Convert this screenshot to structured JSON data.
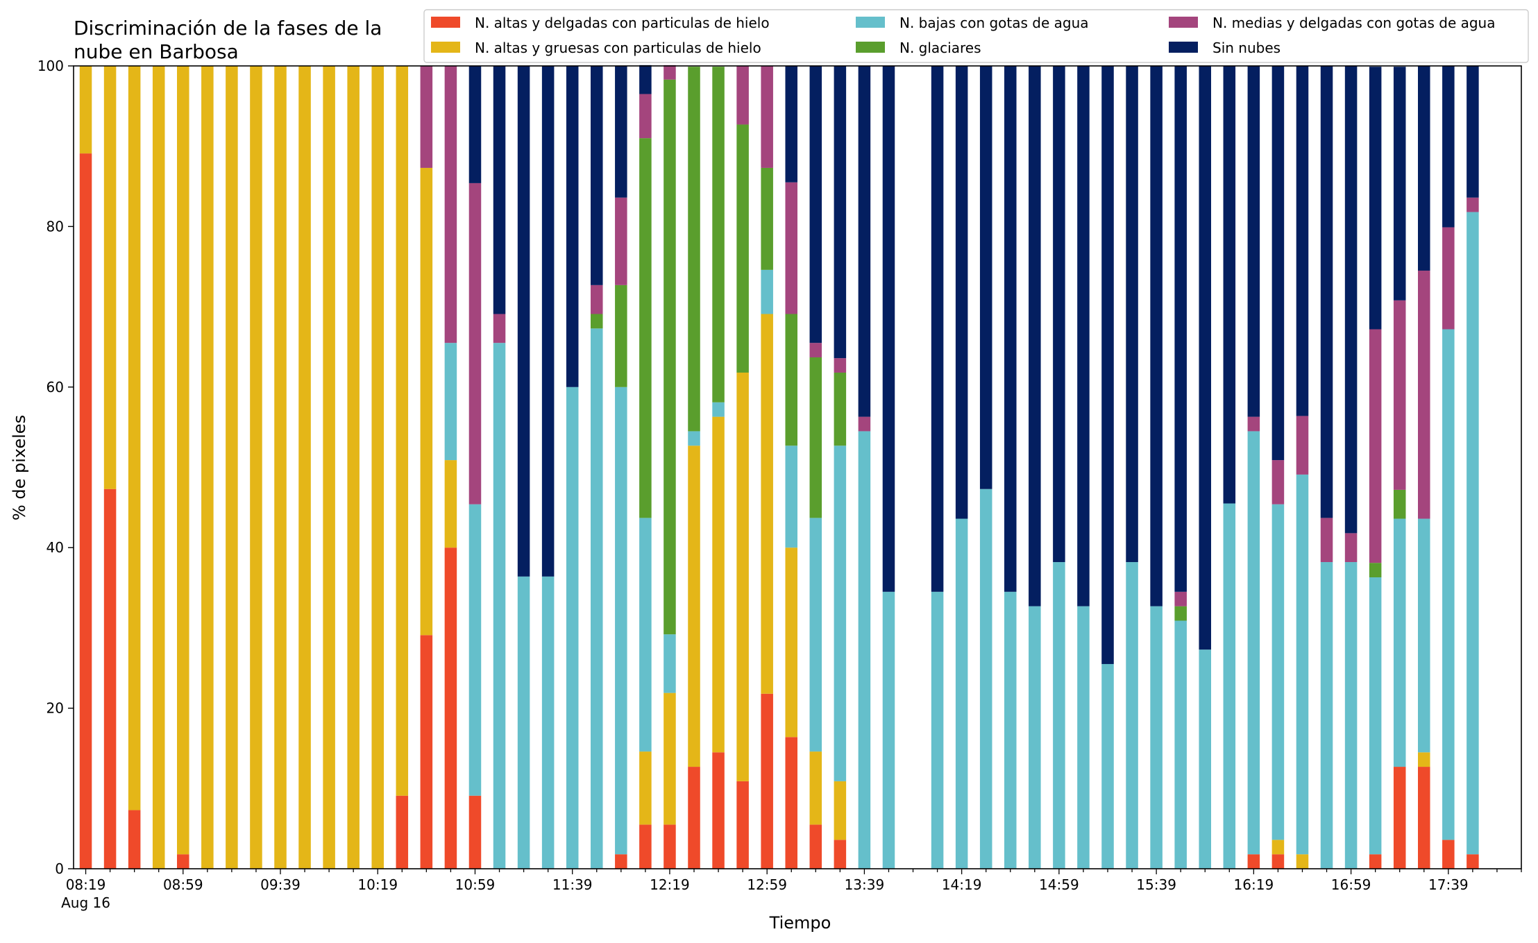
{
  "chart_data": {
    "type": "bar",
    "stacked": true,
    "title_lines": [
      "Discriminación de la fases de la",
      "nube en Barbosa"
    ],
    "xlabel": "Tiempo",
    "ylabel": "% de pixeles",
    "ylim": [
      0,
      100
    ],
    "yticks": [
      "0",
      "20",
      "40",
      "60",
      "80",
      "100"
    ],
    "x_start": "08:19",
    "x_interval_minutes": 10,
    "x_count": 59,
    "xtick_labels": [
      "08:19",
      "08:59",
      "09:39",
      "10:19",
      "10:59",
      "11:39",
      "12:19",
      "12:59",
      "13:39",
      "14:19",
      "14:59",
      "15:39",
      "16:19",
      "16:59",
      "17:39"
    ],
    "xtick_sublabel": "Aug 16",
    "grid": false,
    "legend_position": "top-right",
    "series": [
      {
        "name": "N. altas y delgadas con particulas de hielo",
        "color": "#ef4a2a",
        "values": [
          89.1,
          47.3,
          7.3,
          0,
          1.8,
          0,
          0,
          0,
          0,
          0,
          0,
          0,
          0,
          9.1,
          29.1,
          40.0,
          9.1,
          0,
          0,
          0,
          0,
          0,
          1.8,
          5.5,
          5.5,
          12.7,
          14.5,
          10.9,
          21.8,
          16.4,
          5.5,
          3.6,
          0,
          0,
          null,
          0,
          0,
          0,
          0,
          0,
          0,
          0,
          0,
          0,
          0,
          0,
          0,
          0,
          1.8,
          1.8,
          0,
          0,
          0,
          1.8,
          12.7,
          12.7,
          3.6,
          1.8,
          0
        ]
      },
      {
        "name": "N. altas y gruesas con particulas de hielo",
        "color": "#e4b618",
        "values": [
          10.9,
          52.7,
          92.7,
          100,
          98.2,
          100,
          100,
          100,
          100,
          100,
          100,
          100,
          100,
          90.9,
          58.2,
          10.9,
          0,
          0,
          0,
          0,
          0,
          0,
          0,
          9.1,
          16.4,
          40.0,
          41.8,
          50.9,
          47.3,
          23.6,
          9.1,
          7.3,
          0,
          0,
          null,
          0,
          0,
          0,
          0,
          0,
          0,
          0,
          0,
          0,
          0,
          0,
          0,
          0,
          0,
          1.8,
          1.8,
          0,
          0,
          0,
          0,
          1.8,
          0,
          0,
          0
        ]
      },
      {
        "name": "N. bajas con gotas de agua",
        "color": "#65bfcb",
        "values": [
          0,
          0,
          0,
          0,
          0,
          0,
          0,
          0,
          0,
          0,
          0,
          0,
          0,
          0,
          0,
          14.6,
          36.3,
          65.5,
          36.4,
          36.4,
          60.0,
          67.3,
          58.2,
          29.1,
          7.3,
          1.8,
          1.8,
          0,
          5.5,
          12.7,
          29.1,
          41.8,
          54.5,
          34.5,
          null,
          34.5,
          43.6,
          47.3,
          34.5,
          32.7,
          38.2,
          32.7,
          25.5,
          38.2,
          32.7,
          30.9,
          27.3,
          45.5,
          52.7,
          41.8,
          47.3,
          38.2,
          38.2,
          34.5,
          30.9,
          29.1,
          63.6,
          80.0,
          0
        ]
      },
      {
        "name": "N. glaciares",
        "color": "#5a9e2d",
        "values": [
          0,
          0,
          0,
          0,
          0,
          0,
          0,
          0,
          0,
          0,
          0,
          0,
          0,
          0,
          0,
          0,
          0,
          0,
          0,
          0,
          0,
          1.8,
          12.7,
          47.3,
          69.1,
          45.4,
          41.8,
          30.9,
          12.7,
          16.4,
          20.0,
          9.1,
          0,
          0,
          null,
          0,
          0,
          0,
          0,
          0,
          0,
          0,
          0,
          0,
          0,
          1.8,
          0,
          0,
          0,
          0,
          0,
          0,
          0,
          1.8,
          3.6,
          0,
          0,
          0,
          0
        ]
      },
      {
        "name": "N. medias y delgadas con gotas de agua",
        "color": "#a4457d",
        "values": [
          0,
          0,
          0,
          0,
          0,
          0,
          0,
          0,
          0,
          0,
          0,
          0,
          0,
          0,
          12.7,
          34.5,
          40.0,
          3.6,
          0,
          0,
          0,
          3.6,
          10.9,
          5.5,
          1.8,
          0,
          0,
          7.3,
          12.7,
          16.4,
          1.8,
          1.8,
          1.8,
          0,
          null,
          0,
          0,
          0,
          0,
          0,
          0,
          0,
          0,
          0,
          0,
          1.8,
          0,
          0,
          1.8,
          5.5,
          7.3,
          5.5,
          3.6,
          29.1,
          23.6,
          30.9,
          12.7,
          1.8,
          0
        ]
      },
      {
        "name": "Sin nubes",
        "color": "#041f60",
        "values": [
          0,
          0,
          0,
          0,
          0,
          0,
          0,
          0,
          0,
          0,
          0,
          0,
          0,
          0,
          0,
          0,
          14.6,
          30.9,
          63.6,
          63.6,
          40.0,
          27.3,
          16.4,
          3.6,
          0,
          0,
          0,
          0,
          0,
          14.5,
          34.5,
          36.4,
          43.7,
          65.5,
          null,
          65.5,
          56.4,
          52.7,
          65.5,
          67.3,
          61.8,
          67.3,
          74.5,
          61.8,
          67.3,
          65.5,
          72.7,
          54.5,
          43.7,
          49.1,
          43.6,
          56.3,
          58.2,
          32.7,
          29.1,
          25.5,
          20.1,
          16.4,
          0
        ]
      }
    ]
  }
}
